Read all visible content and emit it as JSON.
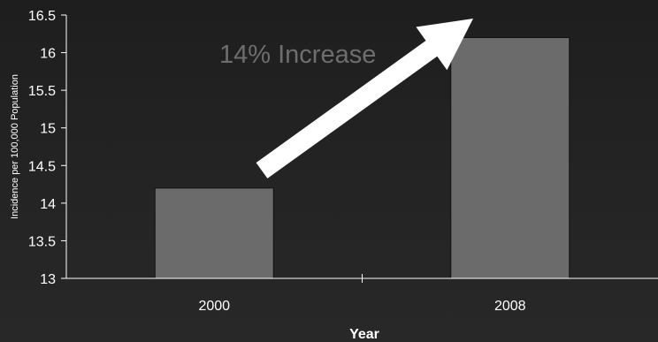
{
  "chart_data": {
    "type": "bar",
    "categories": [
      "2000",
      "2008"
    ],
    "values": [
      14.2,
      16.2
    ],
    "xlabel": "Year",
    "ylabel": "Incidence per 100,000 Population",
    "ylim": [
      13,
      16.5
    ],
    "yticks": [
      "16.5",
      "16",
      "15.5",
      "15",
      "14.5",
      "14",
      "13.5",
      "13"
    ],
    "annotation": "14% Increase",
    "grid": false,
    "bar_color": "#6b6b6b",
    "arrow_color": "#ffffff"
  }
}
